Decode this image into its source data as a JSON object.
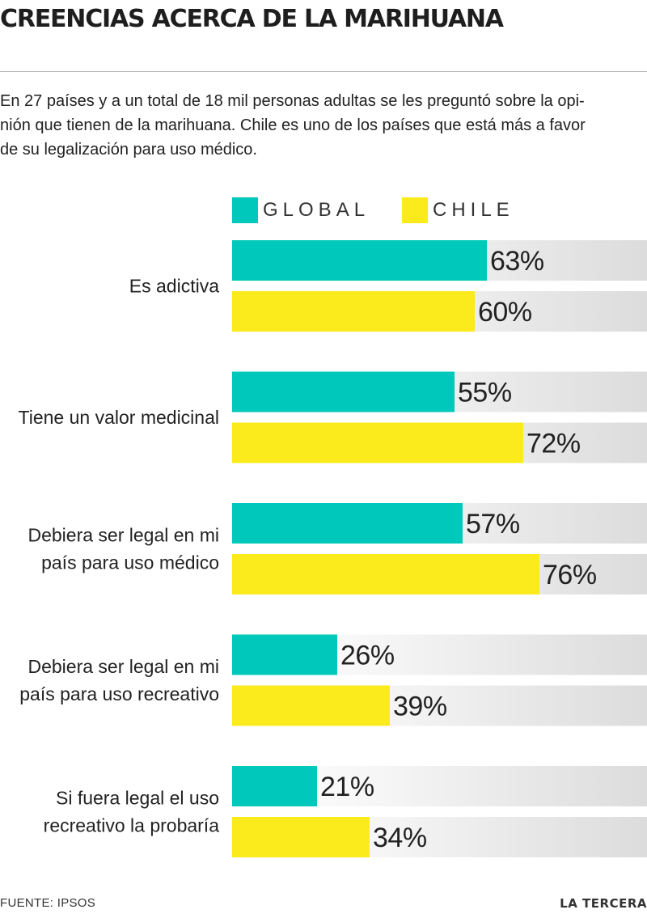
{
  "header": {
    "title": "CREENCIAS ACERCA DE LA MARIHUANA",
    "intro_lines": [
      "En 27 países y a un total de 18 mil personas adultas se les preguntó sobre la opi-",
      "nión que tienen de la marihuana. Chile es uno de los países que está más a favor",
      "de su legalización para uso médico."
    ]
  },
  "legend": [
    {
      "label": "GLOBAL",
      "color": "#00c8bb"
    },
    {
      "label": "CHILE",
      "color": "#fbeb1c"
    }
  ],
  "chart_data": {
    "type": "bar",
    "orientation": "horizontal",
    "categories": [
      [
        "Es adictiva"
      ],
      [
        "Tiene un valor medicinal"
      ],
      [
        "Debiera ser legal en mi",
        "país para uso médico"
      ],
      [
        "Debiera ser legal en mi",
        "país para uso recreativo"
      ],
      [
        "Si fuera legal el uso",
        "recreativo la probaría"
      ]
    ],
    "series": [
      {
        "name": "GLOBAL",
        "values": [
          63,
          55,
          57,
          26,
          21
        ],
        "color": "#00c8bb"
      },
      {
        "name": "CHILE",
        "values": [
          60,
          72,
          76,
          39,
          34
        ],
        "color": "#fbeb1c"
      }
    ],
    "value_suffix": "%",
    "xlim": [
      0,
      100
    ],
    "grid": false,
    "legend_position": "top"
  },
  "footer": {
    "source": "FUENTE: IPSOS",
    "brand": "LA TERCERA"
  }
}
